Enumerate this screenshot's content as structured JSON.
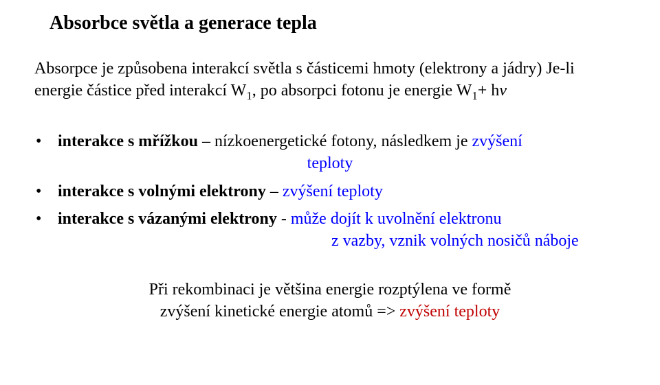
{
  "title": "Absorbce světla a generace tepla",
  "para_prefix": "Absorpce je způsobena interakcí světla s částicemi hmoty (elektrony a jádry) Je-li energie částice před interakcí W",
  "para_sub1": "1",
  "para_mid": ", po absorpci fotonu je energie W",
  "para_sub2": "1",
  "para_plus": "+ h",
  "nu": "ν",
  "b1_lead": "interakce s mřížkou",
  "b1_rest": " – nízkoenergetické fotony, následkem je ",
  "b1_blue1": "zvýšení",
  "b1_blue2": "teploty",
  "b2_lead": "interakce s volnými elektrony",
  "b2_rest": " – ",
  "b2_blue": "zvýšení teploty",
  "b3_lead": "interakce s vázanými elektrony",
  "b3_dash": " -  ",
  "b3_blue_line1": "může dojít k uvolnění elektronu",
  "b3_blue_line2": "z vazby, vznik volných nosičů náboje",
  "footer_line1": "Při rekombinaci je většina energie rozptýlena ve formě",
  "footer_line2a": "zvýšení kinetické energie atomů  => ",
  "footer_red": "zvýšení teploty"
}
